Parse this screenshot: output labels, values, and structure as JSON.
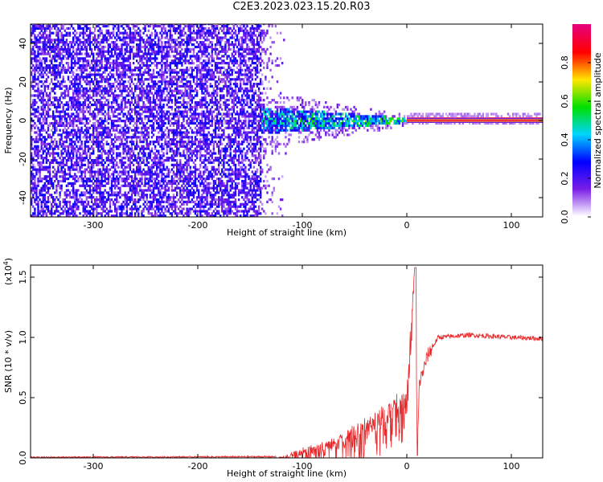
{
  "title": "C2E3.2023.023.15.20.R03",
  "chart_data": [
    {
      "type": "heatmap",
      "xlabel": "Height of straight line (km)",
      "ylabel": "Frequency (Hz)",
      "xlim": [
        -360,
        130
      ],
      "ylim": [
        -50,
        50
      ],
      "x_ticks": [
        -300,
        -200,
        -100,
        0,
        100
      ],
      "y_ticks": [
        -40,
        -20,
        0,
        20,
        40
      ],
      "colorbar": {
        "label": "Normalized spectral amplitude",
        "range": [
          0.0,
          1.0
        ],
        "ticks": [
          "0.0",
          "0.2",
          "0.4",
          "0.6",
          "0.8"
        ],
        "colors": [
          "#ffffff",
          "#7a1ee6",
          "#0000ff",
          "#00d5ff",
          "#00e000",
          "#ffe600",
          "#ff0000",
          "#e6007a"
        ]
      },
      "regions": [
        {
          "name": "noise",
          "x": [
            -360,
            -140
          ],
          "f": [
            -50,
            50
          ],
          "amplitude": 0.1
        },
        {
          "name": "transition",
          "x": [
            -140,
            0
          ],
          "f_halfwidth": [
            7,
            1
          ],
          "amplitude": [
            0.2,
            0.6
          ]
        },
        {
          "name": "tone",
          "x": [
            0,
            130
          ],
          "f": 0,
          "amplitude": 0.95
        }
      ]
    },
    {
      "type": "line",
      "xlabel": "Height of straight line (km)",
      "ylabel": "SNR (10 * v/v)",
      "yscale_label": "(x10",
      "yscale_exp": "4",
      "yscale_close": ")",
      "xlim": [
        -360,
        130
      ],
      "ylim": [
        0,
        1.6
      ],
      "x_ticks": [
        -300,
        -200,
        -100,
        0,
        100
      ],
      "y_ticks": [
        "0.0",
        "0.5",
        "1.0",
        "1.5"
      ],
      "series": [
        {
          "color": "#e8282b",
          "points": [
            [
              -360,
              0.005
            ],
            [
              -120,
              0.01
            ],
            [
              -110,
              0.04
            ],
            [
              -100,
              0.08
            ],
            [
              -80,
              0.13
            ],
            [
              -60,
              0.2
            ],
            [
              -40,
              0.3
            ],
            [
              -20,
              0.42
            ],
            [
              0,
              0.58
            ],
            [
              8,
              1.6
            ],
            [
              10,
              0.02
            ],
            [
              12,
              0.62
            ],
            [
              20,
              0.85
            ],
            [
              30,
              1.0
            ],
            [
              60,
              1.02
            ],
            [
              100,
              1.0
            ],
            [
              130,
              0.99
            ]
          ]
        }
      ]
    }
  ]
}
